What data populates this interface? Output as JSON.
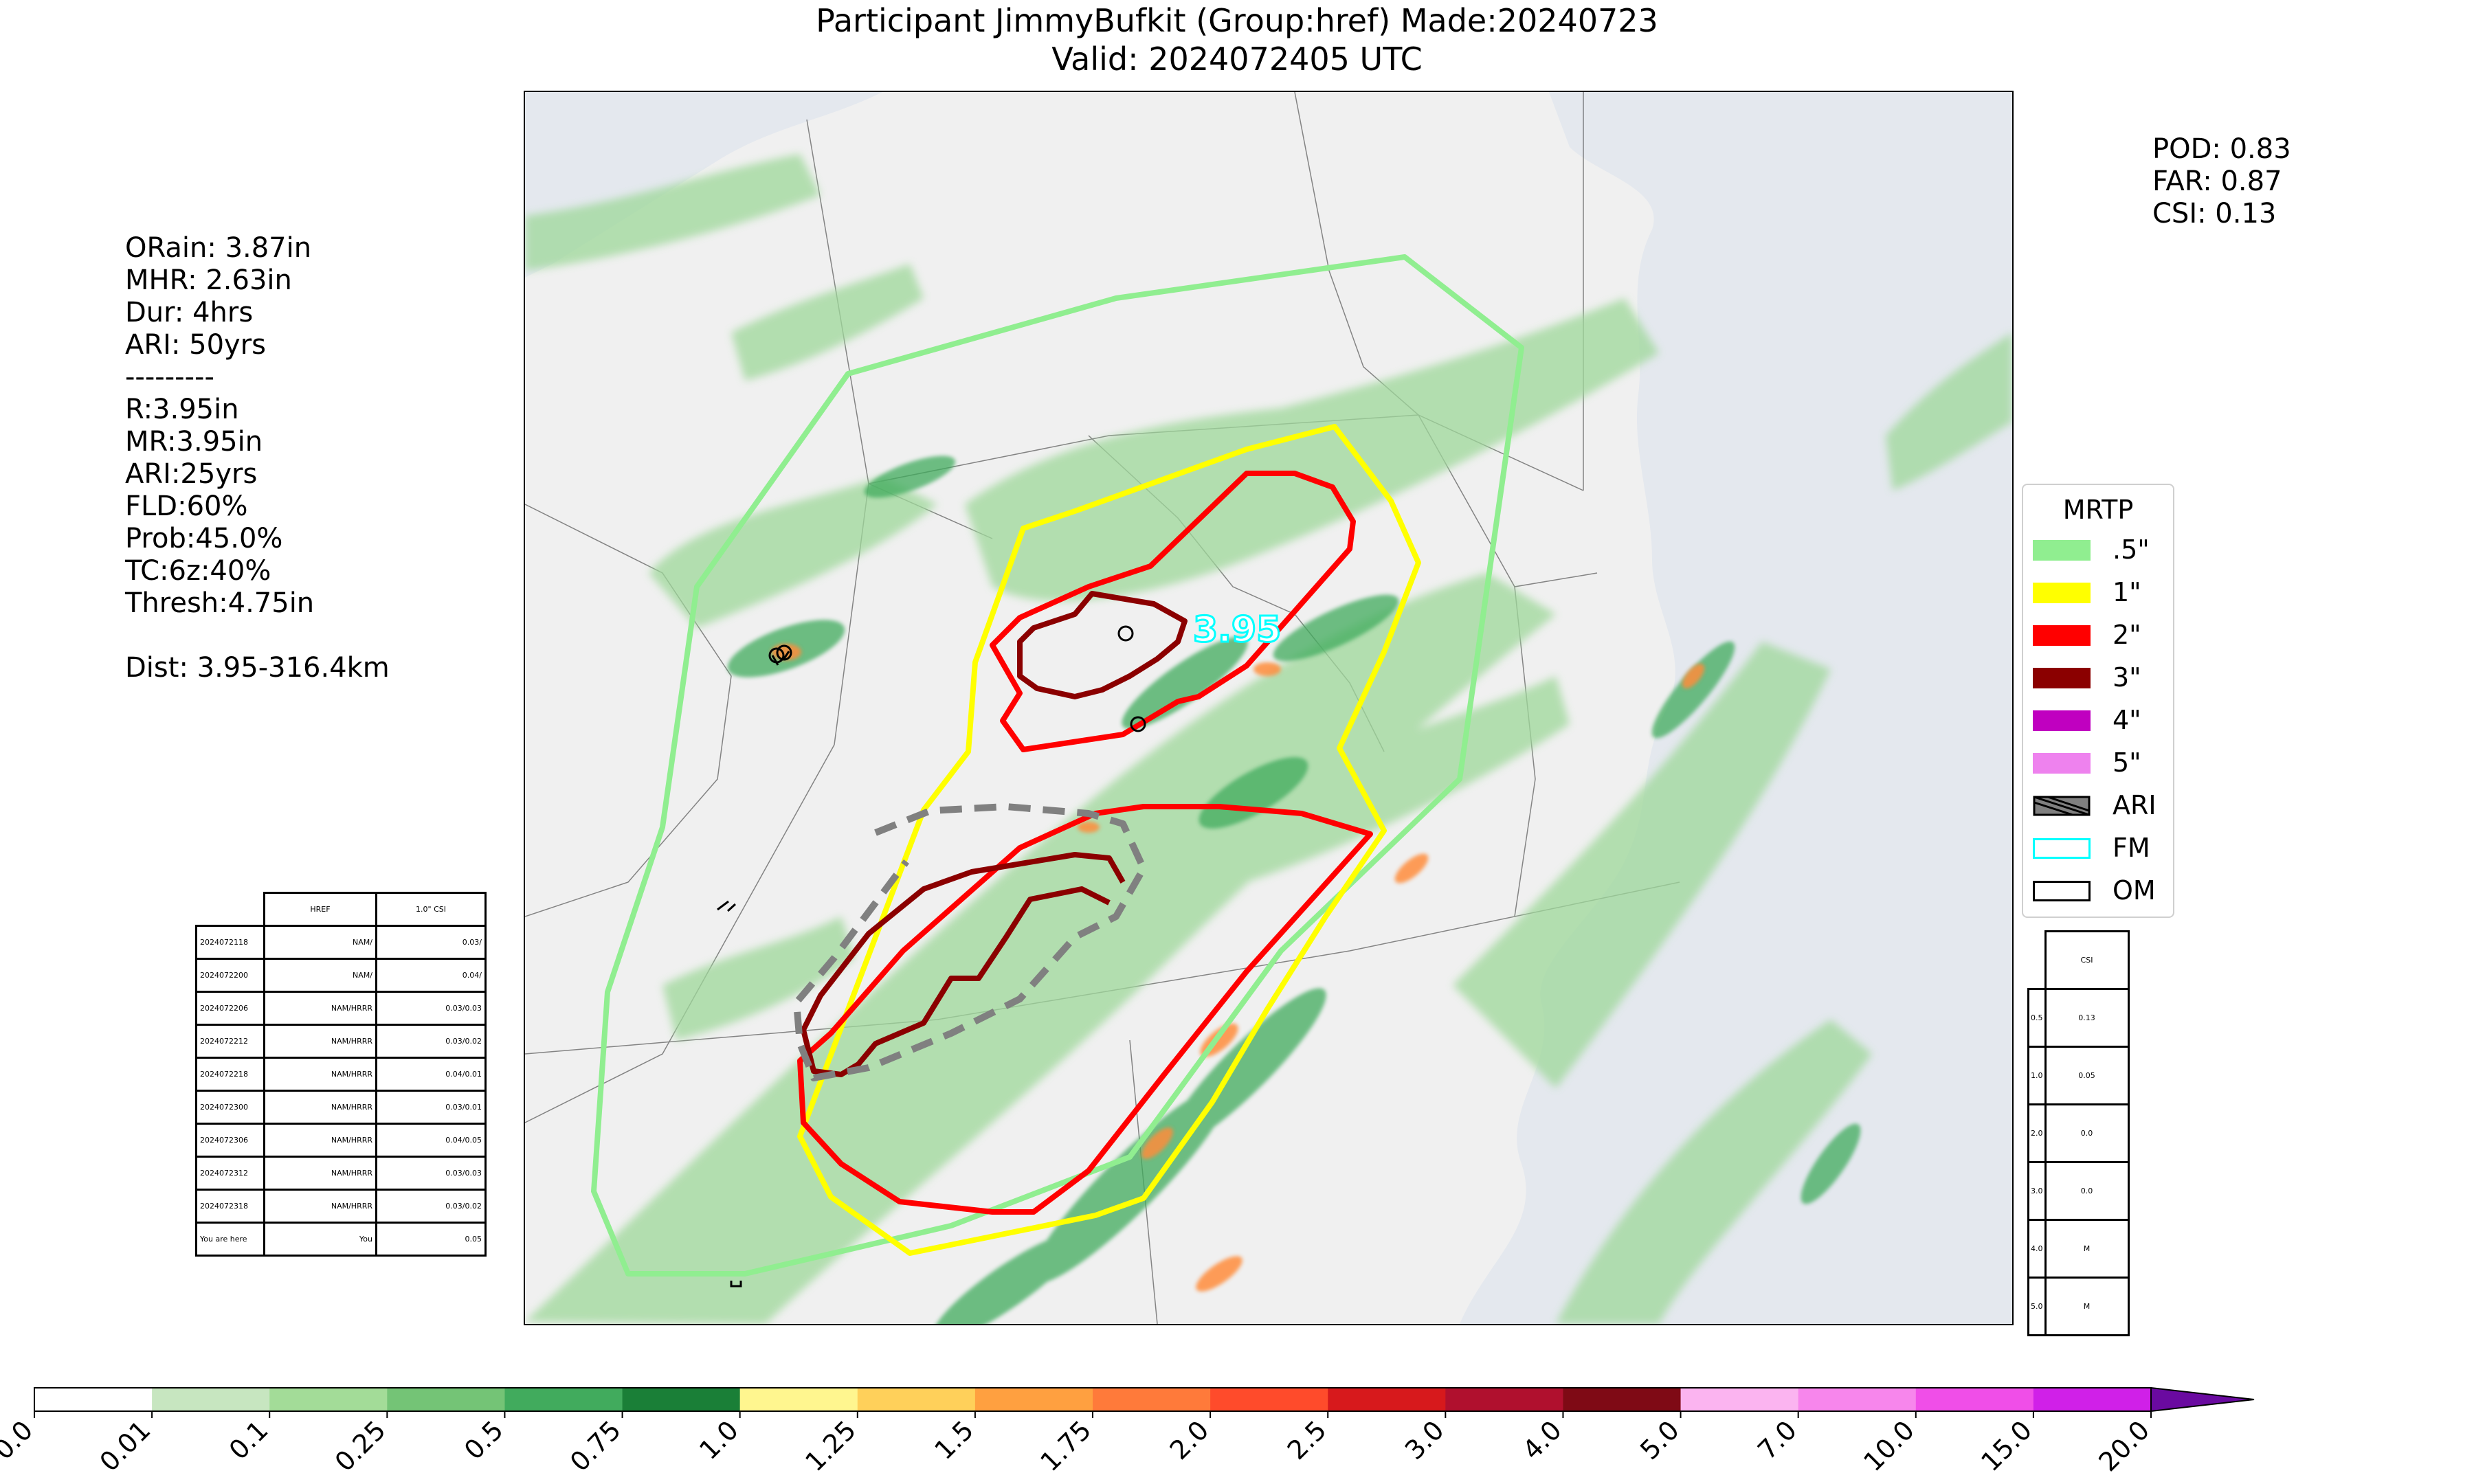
{
  "title": {
    "line1": "Participant JimmyBufkit (Group:href) Made:20240723",
    "line2": "Valid: 2024072405 UTC"
  },
  "stats_left": {
    "orain": "ORain: 3.87in",
    "mhr": "MHR: 2.63in",
    "dur": "Dur: 4hrs",
    "ari": "ARI: 50yrs",
    "sep": "---------",
    "r": "R:3.95in",
    "mr": "MR:3.95in",
    "ari2": "ARI:25yrs",
    "fld": "FLD:60%",
    "prob": "Prob:45.0%",
    "tc": "TC:6z:40%",
    "thresh": "Thresh:4.75in",
    "blank": " ",
    "dist": "Dist: 3.95-316.4km"
  },
  "stats_right": {
    "pod": "POD: 0.83",
    "far": "FAR: 0.87",
    "csi": "CSI: 0.13"
  },
  "map": {
    "max_label": "3.95",
    "colors": {
      "c05": "#90ee90",
      "c1": "#ffff00",
      "c2": "#ff0000",
      "c3": "#8b0000",
      "ari": "#808080",
      "fm": "#00ffff"
    }
  },
  "legend": {
    "title": "MRTP",
    "items": [
      {
        "label": ".5\"",
        "color": "#90ee90"
      },
      {
        "label": "1\"",
        "color": "#ffff00"
      },
      {
        "label": "2\"",
        "color": "#ff0000"
      },
      {
        "label": "3\"",
        "color": "#8b0000"
      },
      {
        "label": "4\"",
        "color": "#c000c0"
      },
      {
        "label": "5\"",
        "color": "#ee82ee"
      },
      {
        "label": "ARI",
        "color": "#808080"
      },
      {
        "label": "FM",
        "color": "#00ffff"
      },
      {
        "label": "OM",
        "color": "#000000"
      }
    ]
  },
  "left_table": {
    "header": [
      "",
      "HREF",
      "1.0\" CSI"
    ],
    "rows": [
      [
        "2024072118",
        "NAM/",
        "0.03/"
      ],
      [
        "2024072200",
        "NAM/",
        "0.04/"
      ],
      [
        "2024072206",
        "NAM/HRRR",
        "0.03/0.03"
      ],
      [
        "2024072212",
        "NAM/HRRR",
        "0.03/0.02"
      ],
      [
        "2024072218",
        "NAM/HRRR",
        "0.04/0.01"
      ],
      [
        "2024072300",
        "NAM/HRRR",
        "0.03/0.01"
      ],
      [
        "2024072306",
        "NAM/HRRR",
        "0.04/0.05"
      ],
      [
        "2024072312",
        "NAM/HRRR",
        "0.03/0.03"
      ],
      [
        "2024072318",
        "NAM/HRRR",
        "0.03/0.02"
      ],
      [
        "You are here",
        "You",
        "0.05"
      ]
    ]
  },
  "right_table": {
    "header": [
      "",
      "CSI"
    ],
    "rows": [
      [
        "0.5",
        "0.13"
      ],
      [
        "1.0",
        "0.05"
      ],
      [
        "2.0",
        "0.0"
      ],
      [
        "3.0",
        "0.0"
      ],
      [
        "4.0",
        "M"
      ],
      [
        "5.0",
        "M"
      ]
    ]
  },
  "colorbar": {
    "ticks": [
      "0.0",
      "0.01",
      "0.1",
      "0.25",
      "0.5",
      "0.75",
      "1.0",
      "1.25",
      "1.5",
      "1.75",
      "2.0",
      "2.5",
      "3.0",
      "4.0",
      "5.0",
      "7.0",
      "10.0",
      "15.0",
      "20.0"
    ],
    "colors": [
      "#ffffff",
      "#c7e6c0",
      "#a3dc98",
      "#74c476",
      "#41ab5d",
      "#1a7f37",
      "#fff68f",
      "#ffd05a",
      "#ffa040",
      "#ff7a3a",
      "#ff4b2b",
      "#d7191c",
      "#b0102e",
      "#7f0a15",
      "#fbb4f0",
      "#f786ec",
      "#f04ee8",
      "#d020e8",
      "#9010c8"
    ],
    "extend_color": "#6a0aa0"
  }
}
